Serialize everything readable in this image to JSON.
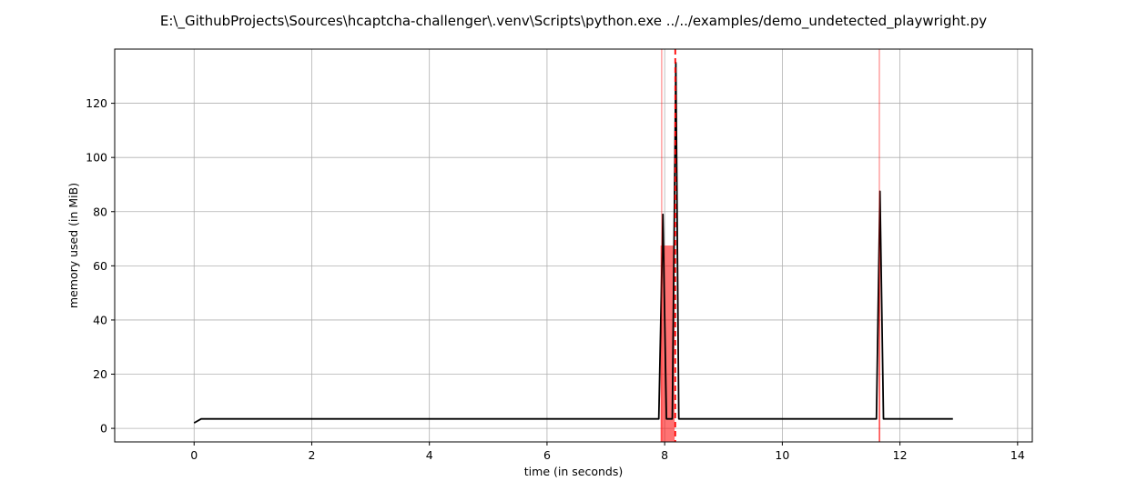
{
  "chart_data": {
    "type": "line",
    "title": "E:\\_GithubProjects\\Sources\\hcaptcha-challenger\\.venv\\Scripts\\python.exe ../../examples/demo_undetected_playwright.py",
    "xlabel": "time (in seconds)",
    "ylabel": "memory used (in MiB)",
    "xlim": [
      -1.35,
      14.25
    ],
    "ylim": [
      -5,
      140
    ],
    "xticks": [
      0,
      2,
      4,
      6,
      8,
      10,
      12,
      14
    ],
    "yticks": [
      0,
      20,
      40,
      60,
      80,
      100,
      120
    ],
    "grid": true,
    "colors": {
      "line": "#000000",
      "highlight": "#ff0000",
      "grid": "#b0b0b0"
    },
    "series": [
      {
        "values": [
          [
            0.0,
            2.0
          ],
          [
            0.12,
            3.5
          ],
          [
            7.9,
            3.5
          ],
          [
            7.97,
            79.0
          ],
          [
            8.03,
            3.5
          ],
          [
            8.13,
            3.5
          ],
          [
            8.19,
            135.0
          ],
          [
            8.24,
            3.5
          ],
          [
            11.6,
            3.5
          ],
          [
            11.66,
            87.5
          ],
          [
            11.72,
            3.5
          ],
          [
            12.9,
            3.5
          ]
        ]
      }
    ],
    "highlight_spans": [
      {
        "x0": 7.93,
        "x1": 8.17,
        "y0": -5,
        "y1": 67.5
      },
      {
        "x0": 11.64,
        "x1": 11.665,
        "y0": -5,
        "y1": 67.5
      }
    ],
    "vertical_lines": [
      {
        "x": 7.95,
        "style": "solid"
      },
      {
        "x": 11.65,
        "style": "solid"
      },
      {
        "x": 8.18,
        "style": "dashed"
      }
    ]
  }
}
